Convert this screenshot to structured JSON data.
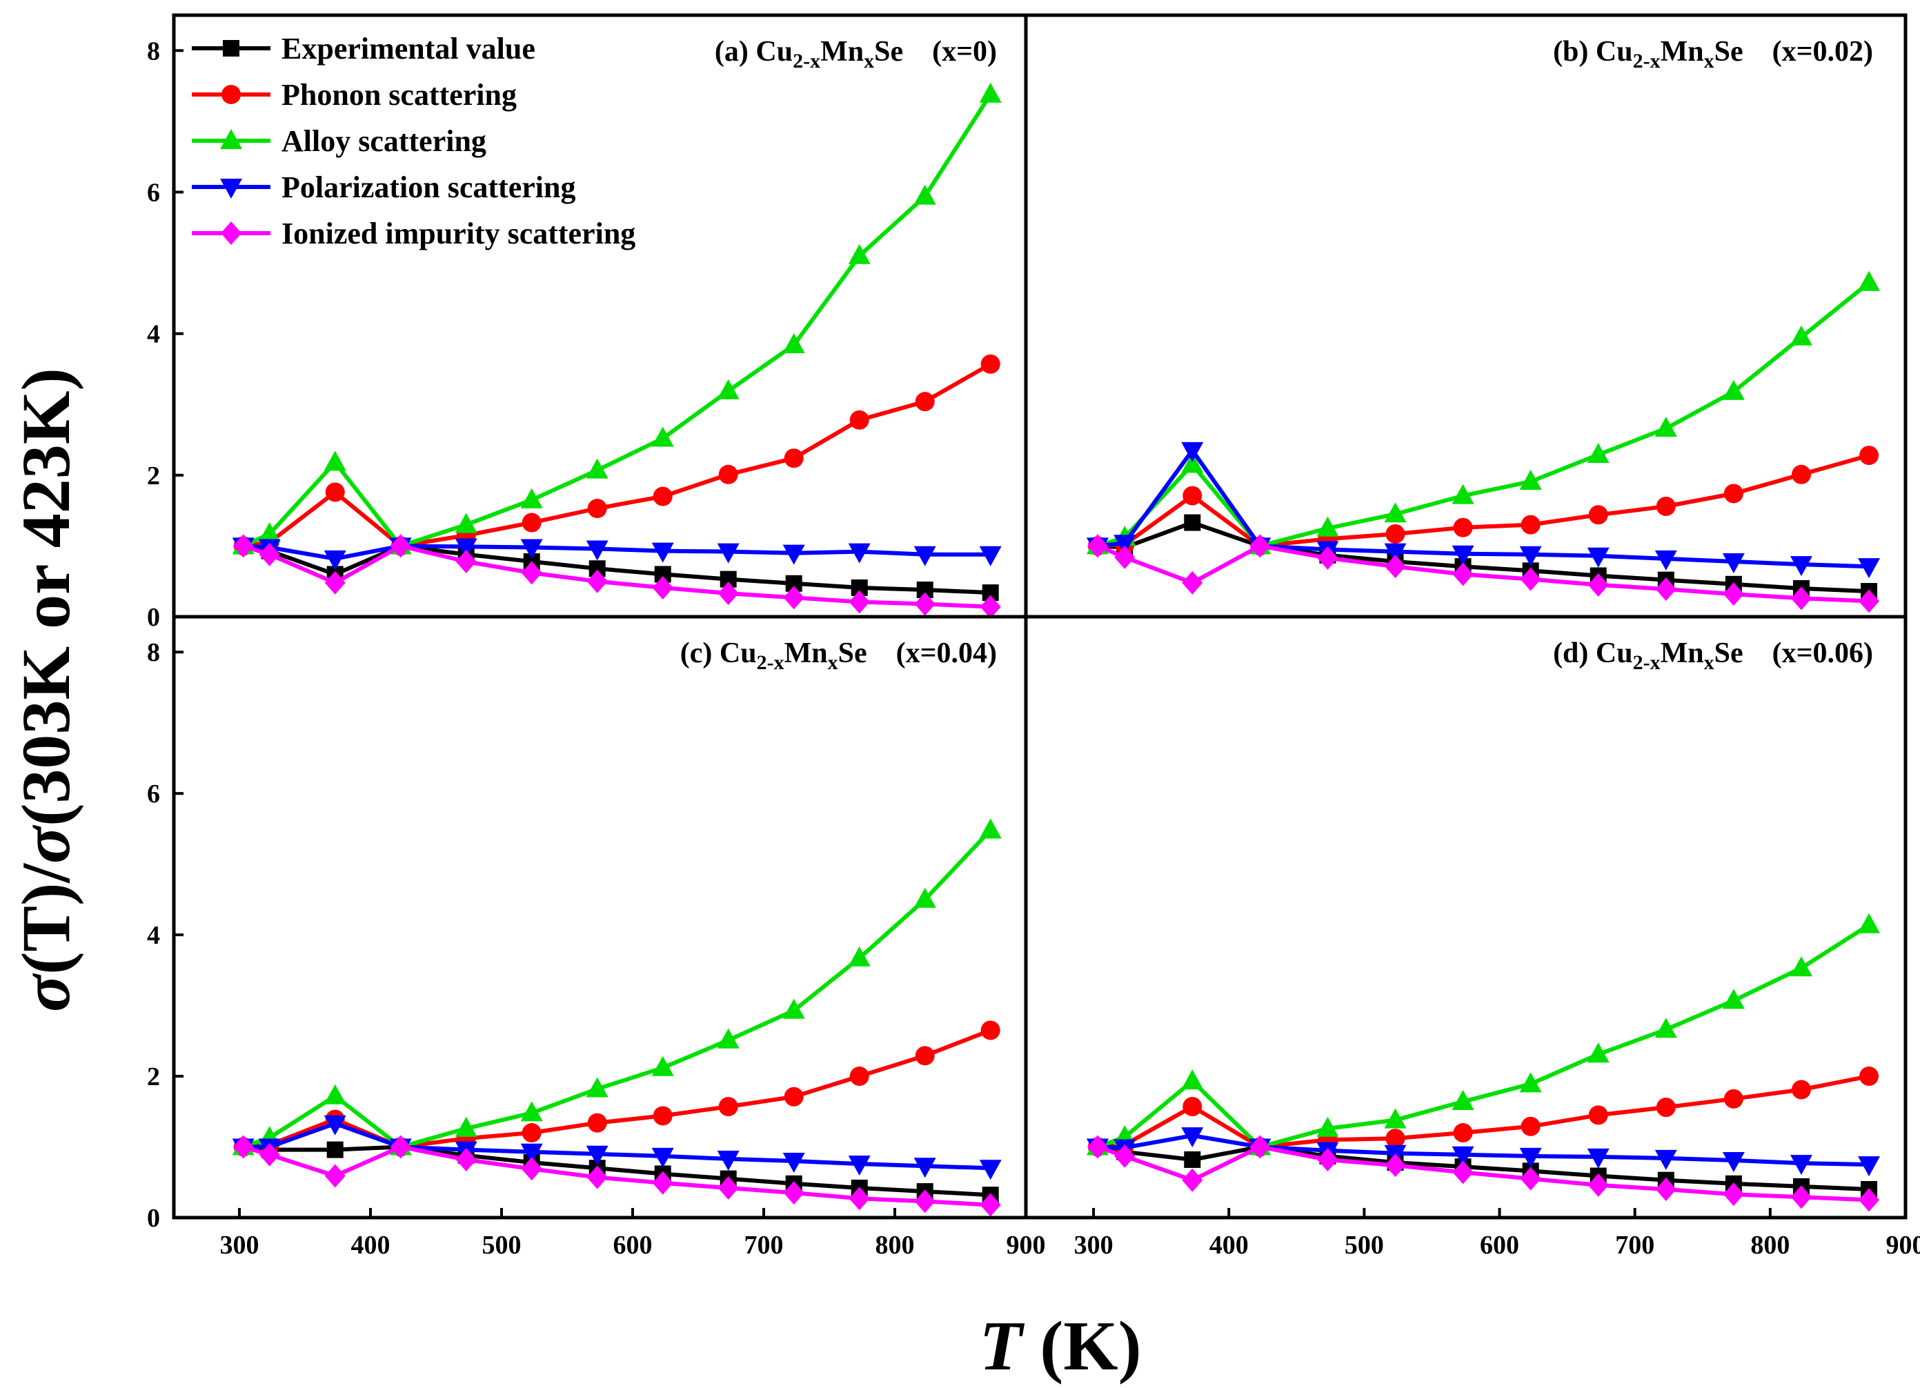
{
  "chart_data": {
    "type": "line",
    "xlabel": "T (K)",
    "xlabel_parts": {
      "italic": "T",
      "rest": " (K)"
    },
    "ylabel": "σ(T)/σ(303K or 423K)",
    "ylabel_parts": {
      "sym1": "σ",
      "mid": "(T)/",
      "sym2": "σ",
      "rest": "(303K or 423K)"
    },
    "xlim": [
      250,
      900
    ],
    "ylim": [
      0,
      8.5
    ],
    "xticks": [
      300,
      400,
      500,
      600,
      700,
      800,
      900
    ],
    "yticks": [
      0,
      2,
      4,
      6,
      8
    ],
    "x": [
      303,
      323,
      373,
      423,
      473,
      523,
      573,
      623,
      673,
      723,
      773,
      823,
      873
    ],
    "legend": [
      {
        "name": "Experimental value",
        "color": "#000000",
        "marker": "square"
      },
      {
        "name": "Phonon scattering",
        "color": "#ff0000",
        "marker": "circle"
      },
      {
        "name": "Alloy scattering",
        "color": "#00e000",
        "marker": "triangle-up"
      },
      {
        "name": "Polarization scattering",
        "color": "#0000ff",
        "marker": "triangle-down"
      },
      {
        "name": "Ionized impurity scattering",
        "color": "#ff00ff",
        "marker": "diamond"
      }
    ],
    "panels": [
      {
        "label": "(a) Cu2-xMnxSe (x=0)",
        "title_parts": {
          "pre": "(a) Cu",
          "sub1": "2-x",
          "mid": "Mn",
          "sub2": "x",
          "post": "Se　(x=0)"
        },
        "series": [
          {
            "name": "Experimental value",
            "values": [
              1.0,
              0.93,
              0.6,
              1.0,
              0.88,
              0.78,
              0.68,
              0.6,
              0.53,
              0.47,
              0.41,
              0.38,
              0.34
            ]
          },
          {
            "name": "Phonon scattering",
            "values": [
              1.0,
              1.05,
              1.76,
              1.0,
              1.15,
              1.33,
              1.53,
              1.7,
              2.01,
              2.24,
              2.78,
              3.04,
              3.57
            ]
          },
          {
            "name": "Alloy scattering",
            "values": [
              1.0,
              1.17,
              2.18,
              1.0,
              1.3,
              1.65,
              2.07,
              2.52,
              3.19,
              3.84,
              5.1,
              5.94,
              7.38
            ]
          },
          {
            "name": "Polarization scattering",
            "values": [
              1.0,
              0.98,
              0.82,
              1.0,
              0.99,
              0.98,
              0.96,
              0.93,
              0.92,
              0.9,
              0.92,
              0.88,
              0.88
            ]
          },
          {
            "name": "Ionized impurity scattering",
            "values": [
              1.0,
              0.88,
              0.48,
              1.0,
              0.78,
              0.62,
              0.5,
              0.41,
              0.33,
              0.27,
              0.21,
              0.18,
              0.14
            ]
          }
        ]
      },
      {
        "label": "(b) Cu2-xMnxSe (x=0.02)",
        "title_parts": {
          "pre": "(b) Cu",
          "sub1": "2-x",
          "mid": "Mn",
          "sub2": "x",
          "post": "Se　(x=0.02)"
        },
        "series": [
          {
            "name": "Experimental value",
            "values": [
              1.0,
              0.98,
              1.33,
              1.0,
              0.87,
              0.78,
              0.71,
              0.65,
              0.58,
              0.52,
              0.46,
              0.4,
              0.36
            ]
          },
          {
            "name": "Phonon scattering",
            "values": [
              1.0,
              1.02,
              1.71,
              1.0,
              1.1,
              1.17,
              1.26,
              1.3,
              1.44,
              1.56,
              1.74,
              2.01,
              2.28
            ]
          },
          {
            "name": "Alloy scattering",
            "values": [
              1.0,
              1.12,
              2.15,
              1.0,
              1.25,
              1.45,
              1.71,
              1.91,
              2.29,
              2.66,
              3.18,
              3.95,
              4.72
            ]
          },
          {
            "name": "Polarization scattering",
            "values": [
              1.0,
              1.04,
              2.35,
              1.0,
              0.95,
              0.92,
              0.89,
              0.88,
              0.86,
              0.82,
              0.78,
              0.74,
              0.71
            ]
          },
          {
            "name": "Ionized impurity scattering",
            "values": [
              1.0,
              0.84,
              0.48,
              1.0,
              0.83,
              0.71,
              0.6,
              0.53,
              0.45,
              0.39,
              0.32,
              0.26,
              0.22
            ]
          }
        ]
      },
      {
        "label": "(c) Cu2-xMnxSe (x=0.04)",
        "title_parts": {
          "pre": "(c) Cu",
          "sub1": "2-x",
          "mid": "Mn",
          "sub2": "x",
          "post": "Se　(x=0.04)"
        },
        "series": [
          {
            "name": "Experimental value",
            "values": [
              1.0,
              0.96,
              0.96,
              1.0,
              0.88,
              0.78,
              0.7,
              0.62,
              0.55,
              0.48,
              0.42,
              0.37,
              0.32
            ]
          },
          {
            "name": "Phonon scattering",
            "values": [
              1.0,
              1.03,
              1.39,
              1.0,
              1.12,
              1.2,
              1.34,
              1.44,
              1.57,
              1.71,
              2.0,
              2.29,
              2.65
            ]
          },
          {
            "name": "Alloy scattering",
            "values": [
              1.0,
              1.13,
              1.72,
              1.0,
              1.26,
              1.48,
              1.82,
              2.12,
              2.51,
              2.93,
              3.67,
              4.5,
              5.48
            ]
          },
          {
            "name": "Polarization scattering",
            "values": [
              1.0,
              1.0,
              1.33,
              1.0,
              0.96,
              0.93,
              0.9,
              0.87,
              0.83,
              0.8,
              0.76,
              0.73,
              0.7
            ]
          },
          {
            "name": "Ionized impurity scattering",
            "values": [
              1.0,
              0.89,
              0.59,
              1.0,
              0.82,
              0.69,
              0.57,
              0.49,
              0.42,
              0.35,
              0.27,
              0.23,
              0.18
            ]
          }
        ]
      },
      {
        "label": "(d) Cu2-xMnxSe (x=0.06)",
        "title_parts": {
          "pre": "(d) Cu",
          "sub1": "2-x",
          "mid": "Mn",
          "sub2": "x",
          "post": "Se　(x=0.06)"
        },
        "series": [
          {
            "name": "Experimental value",
            "values": [
              1.0,
              0.93,
              0.82,
              1.0,
              0.87,
              0.78,
              0.72,
              0.66,
              0.59,
              0.53,
              0.48,
              0.44,
              0.4
            ]
          },
          {
            "name": "Phonon scattering",
            "values": [
              1.0,
              1.03,
              1.57,
              1.0,
              1.1,
              1.12,
              1.2,
              1.29,
              1.45,
              1.56,
              1.68,
              1.81,
              2.0
            ]
          },
          {
            "name": "Alloy scattering",
            "values": [
              1.0,
              1.14,
              1.93,
              1.0,
              1.26,
              1.38,
              1.64,
              1.89,
              2.31,
              2.66,
              3.07,
              3.53,
              4.14
            ]
          },
          {
            "name": "Polarization scattering",
            "values": [
              1.0,
              0.99,
              1.16,
              1.0,
              0.95,
              0.91,
              0.89,
              0.87,
              0.86,
              0.84,
              0.81,
              0.77,
              0.75
            ]
          },
          {
            "name": "Ionized impurity scattering",
            "values": [
              1.0,
              0.87,
              0.53,
              1.0,
              0.82,
              0.74,
              0.64,
              0.55,
              0.46,
              0.4,
              0.33,
              0.29,
              0.25
            ]
          }
        ]
      }
    ]
  }
}
